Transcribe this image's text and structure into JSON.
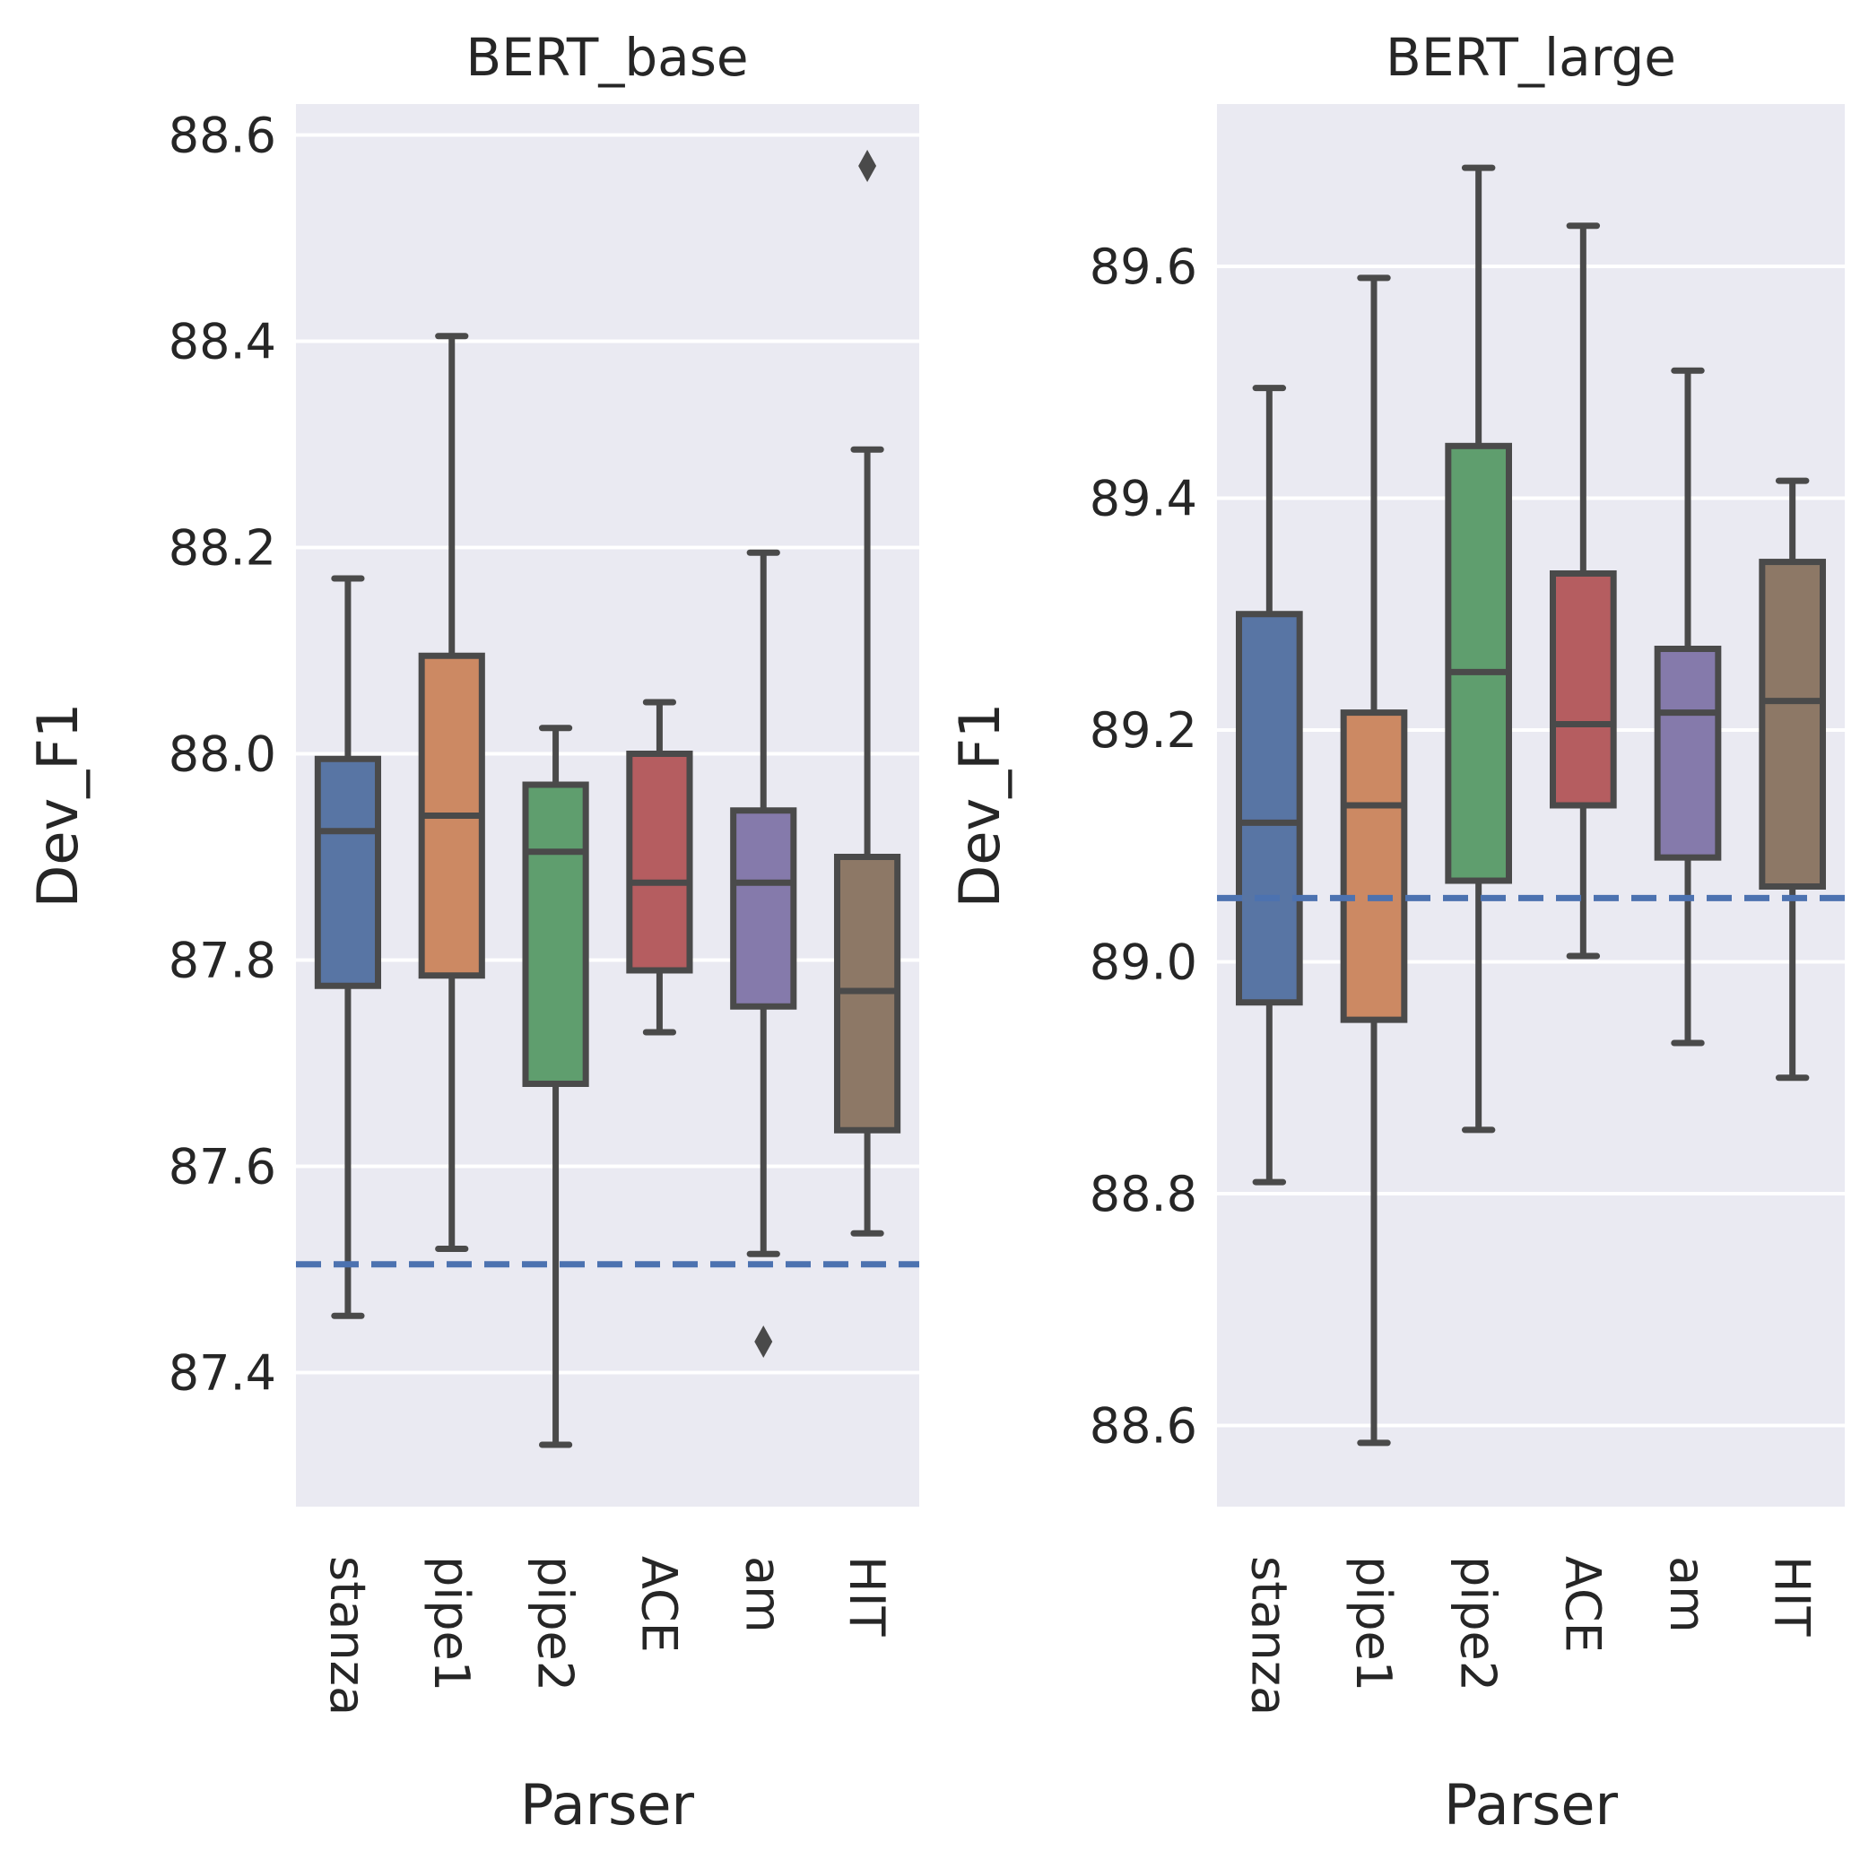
{
  "chart_data": [
    {
      "type": "box",
      "title": "BERT_base",
      "xlabel": "Parser",
      "ylabel": "Dev_F1",
      "ylim": [
        87.27,
        88.63
      ],
      "yticks": [
        87.4,
        87.6,
        87.8,
        88.0,
        88.2,
        88.4,
        88.6
      ],
      "ytick_labels": [
        "87.4",
        "87.6",
        "87.8",
        "88.0",
        "88.2",
        "88.4",
        "88.6"
      ],
      "grid": true,
      "baseline": 87.505,
      "baseline_color": "#4c72b0",
      "categories": [
        "stanza",
        "pipe1",
        "pipe2",
        "ACE",
        "am",
        "HIT"
      ],
      "colors": [
        "#5875a4",
        "#cc8963",
        "#5f9e6e",
        "#b55d60",
        "#857aab",
        "#8d7866"
      ],
      "boxes": [
        {
          "whislo": 87.455,
          "q1": 87.775,
          "med": 87.925,
          "q3": 87.995,
          "whishi": 88.17,
          "fliers": []
        },
        {
          "whislo": 87.52,
          "q1": 87.785,
          "med": 87.94,
          "q3": 88.095,
          "whishi": 88.405,
          "fliers": []
        },
        {
          "whislo": 87.33,
          "q1": 87.68,
          "med": 87.905,
          "q3": 87.97,
          "whishi": 88.025,
          "fliers": []
        },
        {
          "whislo": 87.73,
          "q1": 87.79,
          "med": 87.875,
          "q3": 88.0,
          "whishi": 88.05,
          "fliers": []
        },
        {
          "whislo": 87.515,
          "q1": 87.755,
          "med": 87.875,
          "q3": 87.945,
          "whishi": 88.195,
          "fliers": [
            87.43
          ]
        },
        {
          "whislo": 87.535,
          "q1": 87.635,
          "med": 87.77,
          "q3": 87.9,
          "whishi": 88.295,
          "fliers": [
            88.57
          ]
        }
      ]
    },
    {
      "type": "box",
      "title": "BERT_large",
      "xlabel": "Parser",
      "ylabel": "Dev_F1",
      "ylim": [
        88.53,
        89.74
      ],
      "yticks": [
        88.6,
        88.8,
        89.0,
        89.2,
        89.4,
        89.6
      ],
      "ytick_labels": [
        "88.6",
        "88.8",
        "89.0",
        "89.2",
        "89.4",
        "89.6"
      ],
      "grid": true,
      "baseline": 89.055,
      "baseline_color": "#4c72b0",
      "categories": [
        "stanza",
        "pipe1",
        "pipe2",
        "ACE",
        "am",
        "HIT"
      ],
      "colors": [
        "#5875a4",
        "#cc8963",
        "#5f9e6e",
        "#b55d60",
        "#857aab",
        "#8d7866"
      ],
      "boxes": [
        {
          "whislo": 88.81,
          "q1": 88.965,
          "med": 89.12,
          "q3": 89.3,
          "whishi": 89.495,
          "fliers": []
        },
        {
          "whislo": 88.585,
          "q1": 88.95,
          "med": 89.135,
          "q3": 89.215,
          "whishi": 89.59,
          "fliers": []
        },
        {
          "whislo": 88.855,
          "q1": 89.07,
          "med": 89.25,
          "q3": 89.445,
          "whishi": 89.685,
          "fliers": []
        },
        {
          "whislo": 89.005,
          "q1": 89.135,
          "med": 89.205,
          "q3": 89.335,
          "whishi": 89.635,
          "fliers": []
        },
        {
          "whislo": 88.93,
          "q1": 89.09,
          "med": 89.215,
          "q3": 89.27,
          "whishi": 89.51,
          "fliers": []
        },
        {
          "whislo": 88.9,
          "q1": 89.065,
          "med": 89.225,
          "q3": 89.345,
          "whishi": 89.415,
          "fliers": []
        }
      ]
    }
  ]
}
